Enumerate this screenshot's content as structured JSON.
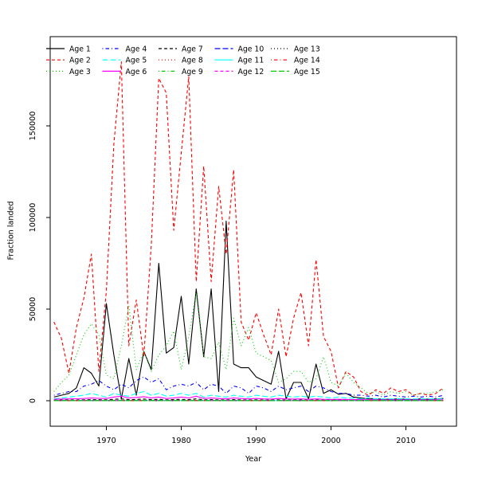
{
  "figure": {
    "background": "#ffffff",
    "xlabel": "Year",
    "ylabel": "Fraction landed"
  },
  "chart_data": {
    "type": "line",
    "title": "",
    "xlabel": "Year",
    "ylabel": "Fraction landed",
    "xlim": [
      1963,
      2015
    ],
    "ylim": [
      0,
      185000
    ],
    "x_ticks": [
      1970,
      1980,
      1990,
      2000,
      2010
    ],
    "y_ticks": [
      0,
      50000,
      100000,
      150000
    ],
    "grid": false,
    "legend_position": "top-left-inside",
    "legend_columns": 5,
    "axis_color": "#000000",
    "years": [
      1963,
      1964,
      1965,
      1966,
      1967,
      1968,
      1969,
      1970,
      1971,
      1972,
      1973,
      1974,
      1975,
      1976,
      1977,
      1978,
      1979,
      1980,
      1981,
      1982,
      1983,
      1984,
      1985,
      1986,
      1987,
      1988,
      1989,
      1990,
      1991,
      1992,
      1993,
      1994,
      1995,
      1996,
      1997,
      1998,
      1999,
      2000,
      2001,
      2002,
      2003,
      2004,
      2005,
      2006,
      2007,
      2008,
      2009,
      2010,
      2011,
      2012,
      2013,
      2014,
      2015
    ],
    "series": [
      {
        "name": "Age 1",
        "color": "#000000",
        "linetype": "solid",
        "values": [
          2000,
          3000,
          4000,
          7000,
          18000,
          15000,
          8000,
          53000,
          25000,
          1000,
          23000,
          3000,
          27000,
          17000,
          75000,
          26000,
          29000,
          57000,
          20000,
          61000,
          24000,
          61000,
          5000,
          98000,
          20000,
          18000,
          18000,
          13000,
          11000,
          9000,
          27000,
          1000,
          10000,
          10000,
          1000,
          20000,
          4000,
          6000,
          3500,
          4000,
          2000,
          1500,
          1000,
          1000,
          800,
          800,
          1000,
          800,
          600,
          1000,
          800,
          1000,
          1200
        ]
      },
      {
        "name": "Age 2",
        "color": "#FF0000",
        "linetype": "dashed",
        "values": [
          43000,
          34000,
          15000,
          40000,
          56000,
          80000,
          16000,
          60000,
          140000,
          185000,
          30000,
          55000,
          24000,
          85000,
          176000,
          168000,
          93000,
          135000,
          177000,
          65000,
          128000,
          65000,
          117000,
          80000,
          126000,
          43000,
          33000,
          48000,
          36000,
          25000,
          50000,
          24000,
          45000,
          59000,
          30000,
          77000,
          35000,
          27000,
          7000,
          16000,
          13000,
          5000,
          3000,
          6000,
          4000,
          7000,
          5000,
          6000,
          3000,
          4000,
          3000,
          4000,
          7000
        ]
      },
      {
        "name": "Age 3",
        "color": "#00CD00",
        "linetype": "dotted",
        "values": [
          5000,
          10000,
          14000,
          25000,
          36000,
          42000,
          36000,
          14000,
          12000,
          30000,
          52000,
          17000,
          27000,
          16000,
          25000,
          30000,
          38000,
          17000,
          35000,
          59000,
          24000,
          23000,
          32000,
          17000,
          45000,
          30000,
          40000,
          26000,
          24000,
          22000,
          10000,
          12000,
          16000,
          16000,
          10000,
          12000,
          24000,
          10000,
          8000,
          15000,
          10000,
          7000,
          4000,
          5000,
          3000,
          5000,
          4000,
          5000,
          3000,
          4000,
          4000,
          5000,
          6000
        ]
      },
      {
        "name": "Age 4",
        "color": "#0000FF",
        "linetype": "dotdash",
        "values": [
          3000,
          4000,
          5000,
          5000,
          8000,
          9000,
          11000,
          8000,
          6000,
          9000,
          7000,
          11000,
          13000,
          10000,
          12000,
          6000,
          8000,
          9000,
          8000,
          10000,
          6000,
          9000,
          8000,
          4000,
          8000,
          7000,
          4000,
          8000,
          7000,
          5000,
          8000,
          6000,
          7000,
          8000,
          5000,
          8000,
          7000,
          5000,
          4000,
          4000,
          3000,
          3000,
          2500,
          3000,
          2000,
          3000,
          2500,
          2000,
          2500,
          2000,
          2500,
          2000,
          3000
        ]
      },
      {
        "name": "Age 5",
        "color": "#00FFFF",
        "linetype": "longdash",
        "values": [
          1000,
          1500,
          2000,
          2500,
          3000,
          4000,
          3000,
          2000,
          4000,
          3000,
          2500,
          4000,
          5000,
          3000,
          4000,
          2500,
          3000,
          4000,
          3000,
          4000,
          2000,
          3000,
          2500,
          2000,
          3000,
          2500,
          2000,
          3000,
          2500,
          2000,
          3000,
          2500,
          2000,
          2500,
          2000,
          2500,
          2000,
          1500,
          2000,
          1500,
          1500,
          1000,
          1500,
          1000,
          1000,
          1000,
          1000,
          1000,
          1000,
          1000,
          1000,
          1000,
          1000
        ]
      },
      {
        "name": "Age 6",
        "color": "#FF00FF",
        "linetype": "solid",
        "values": [
          800,
          900,
          1000,
          1100,
          1200,
          1500,
          1300,
          1200,
          2000,
          2500,
          1500,
          1800,
          2200,
          1500,
          2000,
          1200,
          1500,
          2000,
          1500,
          2500,
          1200,
          1500,
          1200,
          1000,
          1500,
          1200,
          1000,
          1200,
          1000,
          900,
          1200,
          1000,
          900,
          1000,
          800,
          1000,
          800,
          700,
          800,
          700,
          600,
          600,
          500,
          500,
          500,
          500,
          500,
          500,
          400,
          500,
          400,
          500,
          500
        ]
      },
      {
        "name": "Age 7",
        "color": "#000000",
        "linetype": "dashed",
        "values": [
          300,
          350,
          400,
          450,
          500,
          600,
          550,
          500,
          800,
          1000,
          600,
          700,
          900,
          600,
          800,
          500,
          600,
          800,
          600,
          1000,
          500,
          600,
          500,
          400,
          600,
          500,
          400,
          500,
          400,
          350,
          500,
          400,
          350,
          400,
          300,
          400,
          300,
          280,
          300,
          280,
          250,
          250,
          200,
          200,
          200,
          200,
          200,
          200,
          150,
          200,
          150,
          200,
          200
        ]
      },
      {
        "name": "Age 8",
        "color": "#FF0000",
        "linetype": "dotted",
        "values": [
          100,
          120,
          150,
          180,
          200,
          250,
          220,
          200,
          300,
          350,
          250,
          280,
          320,
          250,
          300,
          200,
          250,
          300,
          250,
          350,
          200,
          250,
          200,
          180,
          250,
          200,
          180,
          200,
          180,
          150,
          200,
          180,
          150,
          180,
          150,
          180,
          150,
          130,
          150,
          130,
          120,
          120,
          100,
          100,
          100,
          100,
          100,
          100,
          80,
          100,
          80,
          100,
          100
        ]
      },
      {
        "name": "Age 9",
        "color": "#00CD00",
        "linetype": "dotdash",
        "values": [
          150,
          150,
          150,
          150,
          150,
          150,
          150,
          150,
          150,
          150,
          150,
          150,
          150,
          150,
          150,
          150,
          150,
          150,
          150,
          150,
          150,
          150,
          150,
          150,
          150,
          150,
          150,
          150,
          150,
          150,
          150,
          150,
          150,
          150,
          150,
          150,
          150,
          150,
          150,
          150,
          150,
          150,
          150,
          150,
          150,
          150,
          150,
          150,
          150,
          150,
          150,
          150,
          150
        ]
      },
      {
        "name": "Age 10",
        "color": "#0000FF",
        "linetype": "longdash",
        "values": [
          120,
          120,
          120,
          120,
          120,
          120,
          120,
          120,
          120,
          120,
          120,
          120,
          120,
          120,
          120,
          120,
          120,
          120,
          120,
          120,
          120,
          120,
          120,
          120,
          120,
          120,
          120,
          120,
          120,
          120,
          120,
          120,
          120,
          120,
          120,
          120,
          120,
          120,
          120,
          120,
          120,
          120,
          120,
          120,
          120,
          120,
          120,
          120,
          120,
          120,
          120,
          120,
          120
        ]
      },
      {
        "name": "Age 11",
        "color": "#00FFFF",
        "linetype": "solid",
        "values": [
          100,
          100,
          100,
          100,
          100,
          100,
          100,
          100,
          100,
          100,
          100,
          100,
          100,
          100,
          100,
          100,
          100,
          100,
          100,
          100,
          100,
          100,
          100,
          100,
          100,
          100,
          100,
          100,
          100,
          100,
          100,
          100,
          100,
          100,
          100,
          100,
          100,
          100,
          100,
          100,
          100,
          100,
          100,
          100,
          100,
          100,
          100,
          100,
          100,
          100,
          100,
          100,
          100
        ]
      },
      {
        "name": "Age 12",
        "color": "#FF00FF",
        "linetype": "dashed",
        "values": [
          80,
          80,
          80,
          80,
          80,
          80,
          80,
          80,
          80,
          80,
          80,
          80,
          80,
          80,
          80,
          80,
          80,
          80,
          80,
          80,
          80,
          80,
          80,
          80,
          80,
          80,
          80,
          80,
          80,
          80,
          80,
          80,
          80,
          80,
          80,
          80,
          80,
          80,
          80,
          80,
          80,
          80,
          80,
          80,
          80,
          80,
          80,
          80,
          80,
          80,
          80,
          80,
          80
        ]
      },
      {
        "name": "Age 13",
        "color": "#000000",
        "linetype": "dotted",
        "values": [
          60,
          60,
          60,
          60,
          60,
          60,
          60,
          60,
          60,
          60,
          60,
          60,
          60,
          60,
          60,
          60,
          60,
          60,
          60,
          60,
          60,
          60,
          60,
          60,
          60,
          60,
          60,
          60,
          60,
          60,
          60,
          60,
          60,
          60,
          60,
          60,
          60,
          60,
          60,
          60,
          60,
          60,
          60,
          60,
          60,
          60,
          60,
          60,
          60,
          60,
          60,
          60,
          60
        ]
      },
      {
        "name": "Age 14",
        "color": "#FF0000",
        "linetype": "dotdash",
        "values": [
          50,
          50,
          50,
          50,
          50,
          50,
          50,
          50,
          50,
          50,
          50,
          50,
          50,
          50,
          50,
          50,
          50,
          50,
          50,
          50,
          50,
          50,
          50,
          50,
          50,
          50,
          50,
          50,
          50,
          50,
          50,
          50,
          50,
          50,
          50,
          50,
          50,
          50,
          50,
          50,
          50,
          50,
          50,
          50,
          50,
          50,
          50,
          50,
          50,
          50,
          50,
          50,
          50
        ]
      },
      {
        "name": "Age 15",
        "color": "#00CD00",
        "linetype": "longdash",
        "values": [
          40,
          40,
          40,
          40,
          40,
          40,
          40,
          40,
          40,
          40,
          40,
          40,
          40,
          40,
          40,
          40,
          40,
          40,
          40,
          40,
          40,
          40,
          40,
          40,
          40,
          40,
          40,
          40,
          40,
          40,
          40,
          40,
          40,
          40,
          40,
          40,
          40,
          40,
          40,
          40,
          40,
          40,
          40,
          40,
          40,
          40,
          40,
          40,
          40,
          40,
          40,
          40,
          40
        ]
      }
    ]
  }
}
